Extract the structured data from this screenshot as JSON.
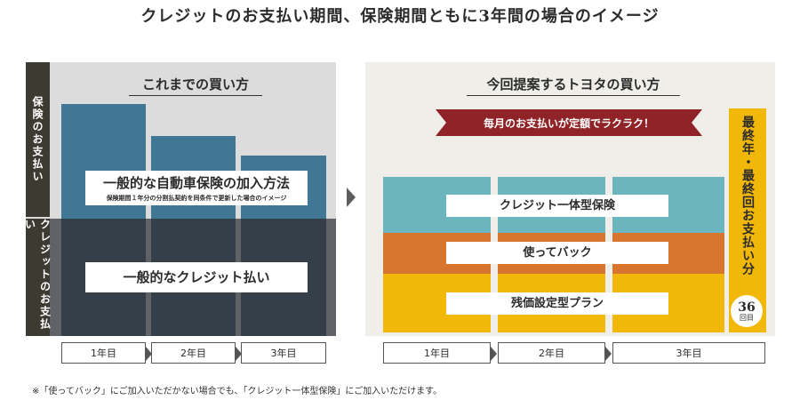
{
  "title": "クレジットのお支払い期間、保険期間ともに3年間の場合のイメージ",
  "left": {
    "title": "これまでの買い方",
    "side_insurance": "保険のお支払い",
    "side_credit": "クレジットのお支払い",
    "insurance_label": "一般的な自動車保険の加入方法",
    "insurance_sublabel": "保険期間１年分の分割払契約を同条件で更新した場合のイメージ",
    "credit_label": "一般的なクレジット払い",
    "years": [
      "1年目",
      "2年目",
      "3年目"
    ]
  },
  "right": {
    "title": "今回提案するトヨタの買い方",
    "ribbon": "毎月のお支払いが定額でラクラク！",
    "label_top": "クレジット一体型保険",
    "label_mid": "使ってバック",
    "label_bottom": "残価設定型プラン",
    "final_label": "最終年・最終回お支払い分",
    "final_count": "36",
    "final_unit": "回目",
    "years": [
      "1年目",
      "2年目",
      "3年目"
    ]
  },
  "footnote": "※「使ってバック」にご加入いただかない場合でも、「クレジット一体型保険」にご加入いただけます。",
  "colors": {
    "insurance_bar": "#3f7795",
    "credit_bar": "#343f49",
    "teal": "#6bb6be",
    "orange": "#d7752f",
    "yellow": "#f2b809",
    "ribbon": "#8f2327"
  }
}
